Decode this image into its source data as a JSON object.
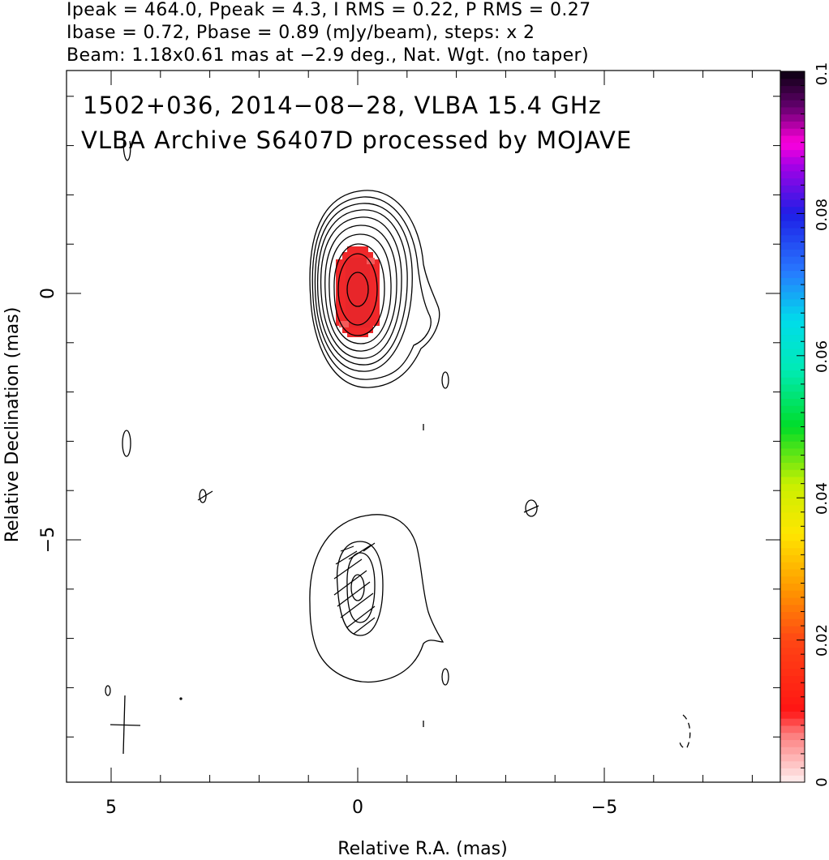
{
  "header": {
    "line1": "Ipeak = 464.0, Ppeak = 4.3, I RMS = 0.22, P RMS = 0.27",
    "line2": "Ibase = 0.72, Pbase = 0.89 (mJy/beam), steps: x 2",
    "line3": "Beam: 1.18x0.61 mas at −2.9 deg., Nat. Wgt. (no taper)"
  },
  "annotation": {
    "line1": "1502+036, 2014−08−28, VLBA 15.4 GHz",
    "line2": "VLBA Archive S6407D processed by MOJAVE"
  },
  "chart_data": {
    "type": "contour",
    "xlabel": "Relative R.A. (mas)",
    "ylabel": "Relative Declination (mas)",
    "xlim": [
      6,
      -8.3
    ],
    "ylim": [
      -9.9,
      4.5
    ],
    "xticks": [
      5,
      0,
      -5
    ],
    "xtick_labels": [
      "5",
      "0",
      "−5"
    ],
    "yticks": [
      0,
      -5
    ],
    "ytick_labels": [
      "0",
      "−5"
    ],
    "colorbar": {
      "range": [
        0,
        0.1
      ],
      "ticks": [
        0,
        0.02,
        0.04,
        0.06,
        0.08,
        0.1
      ],
      "tick_labels": [
        "0",
        "0.02",
        "0.04",
        "0.06",
        "0.08",
        "0.1"
      ]
    },
    "core": {
      "x": 0,
      "y": -0.05
    },
    "jet_component": {
      "x": 0,
      "y": -6.0
    },
    "beam": {
      "major_mas": 1.18,
      "minor_mas": 0.61,
      "pa_deg": -2.9
    },
    "colors": {
      "polarization_fill": "#f0282a",
      "contour": "#000000"
    }
  }
}
